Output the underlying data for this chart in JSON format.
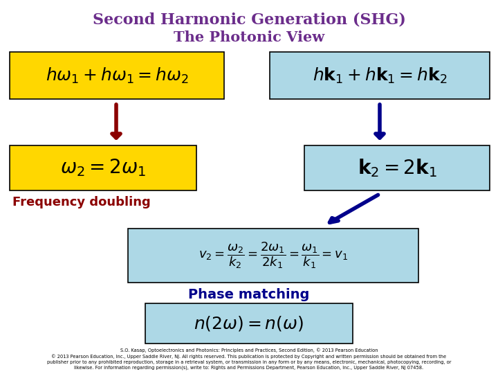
{
  "title_line1": "Second Harmonic Generation (SHG)",
  "title_line2": "The Photonic View",
  "title_color": "#6B2D8B",
  "bg_color": "#FFFFFF",
  "yellow_bg": "#FFD700",
  "blue_bg": "#ADD8E6",
  "freq_doubling_color": "#8B0000",
  "phase_matching_color": "#00008B",
  "arrow_red": "#8B0000",
  "arrow_blue": "#00008B",
  "footer_line1": "S.O. Kasap, Optoelectronics and Photonics: Principles and Practices, Second Edition, © 2013 Pearson Education",
  "footer_line2": "© 2013 Pearson Education, Inc., Upper Saddle River, NJ. All rights reserved. This publication is protected by Copyright and written permission should be obtained from the",
  "footer_line3": "publisher prior to any prohibited reproduction, storage in a retrieval system, or transmission in any form or by any means, electronic, mechanical, photocopying, recording, or",
  "footer_line4": "likewise. For information regarding permission(s), write to: Rights and Permissions Department, Pearson Education, Inc., Upper Saddle River, NJ 07458."
}
